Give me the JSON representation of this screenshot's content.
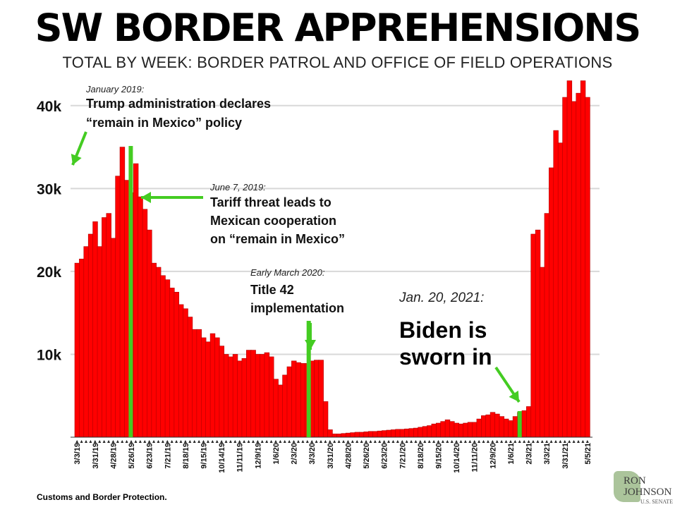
{
  "header": {
    "title": "SW BORDER APPREHENSIONS",
    "subtitle": "TOTAL BY WEEK: BORDER PATROL AND OFFICE OF FIELD OPERATIONS"
  },
  "footer": {
    "source": "Customs and Border Protection.",
    "logo_line1": "RON",
    "logo_line2": "JOHNSON",
    "logo_line3": "U.S. SENATE"
  },
  "colors": {
    "bar": "#ff0000",
    "bar_edge": "#b00000",
    "marker": "#44cc22",
    "grid": "#d8d8d8"
  },
  "annotations": [
    {
      "date": "January 2019:",
      "lines": [
        "Trump administration declares",
        "“remain in Mexico” policy"
      ]
    },
    {
      "date": "June 7, 2019:",
      "lines": [
        "Tariff threat leads to",
        "Mexican cooperation",
        "on “remain in Mexico”"
      ]
    },
    {
      "date": "Early March 2020:",
      "lines": [
        "Title 42",
        "implementation"
      ]
    },
    {
      "date": "Jan. 20, 2021:",
      "lines": [
        "Biden is",
        "sworn in"
      ]
    }
  ],
  "chart_data": {
    "type": "bar",
    "title": "SW BORDER APPREHENSIONS",
    "subtitle": "TOTAL BY WEEK: BORDER PATROL AND OFFICE OF FIELD OPERATIONS",
    "ylim": [
      0,
      45000
    ],
    "yticks": [
      10000,
      20000,
      30000,
      40000
    ],
    "ytick_labels": [
      "10k",
      "20k",
      "30k",
      "40k"
    ],
    "grid": true,
    "xtick_labels": [
      "3/3/19",
      "3/31/19",
      "4/28/19",
      "5/26/19",
      "6/23/19",
      "7/21/19",
      "8/18/19",
      "9/15/19",
      "10/14/19",
      "11/11/19",
      "12/9/19",
      "1/6/20",
      "2/3/20",
      "3/3/20",
      "3/31/20",
      "4/28/20",
      "5/26/20",
      "6/23/20",
      "7/21/20",
      "8/18/20",
      "9/15/20",
      "10/14/20",
      "11/11/20",
      "12/9/20",
      "1/6/21",
      "2/3/21",
      "3/3/21",
      "3/31/21",
      "5/5/21"
    ],
    "xtick_index": [
      0,
      4,
      8,
      12,
      16,
      20,
      24,
      28,
      32,
      36,
      40,
      44,
      48,
      52,
      56,
      60,
      64,
      68,
      72,
      76,
      80,
      84,
      88,
      92,
      96,
      100,
      104,
      108,
      113
    ],
    "values": [
      21000,
      21500,
      23000,
      24500,
      26000,
      23000,
      26500,
      27000,
      24000,
      31500,
      35000,
      31000,
      29500,
      33000,
      29000,
      27500,
      25000,
      21000,
      20500,
      19500,
      19000,
      18000,
      17500,
      16000,
      15500,
      14500,
      13000,
      13000,
      12000,
      11500,
      12500,
      12000,
      11000,
      10000,
      9700,
      10000,
      9200,
      9500,
      10500,
      10500,
      10000,
      10000,
      10200,
      9700,
      7000,
      6300,
      7500,
      8500,
      9200,
      9000,
      8900,
      8900,
      9200,
      9300,
      9300,
      4300,
      900,
      400,
      400,
      450,
      500,
      550,
      600,
      600,
      650,
      700,
      700,
      750,
      800,
      850,
      900,
      950,
      950,
      1000,
      1050,
      1100,
      1200,
      1300,
      1400,
      1600,
      1700,
      1900,
      2100,
      1900,
      1700,
      1600,
      1700,
      1800,
      1800,
      2200,
      2600,
      2700,
      3000,
      2800,
      2500,
      2200,
      2000,
      2500,
      3000,
      3200,
      3700,
      24500,
      25000,
      20500,
      27000,
      32500,
      37000,
      35500,
      41000,
      43000,
      40500,
      41500,
      43000,
      41000
    ]
  }
}
